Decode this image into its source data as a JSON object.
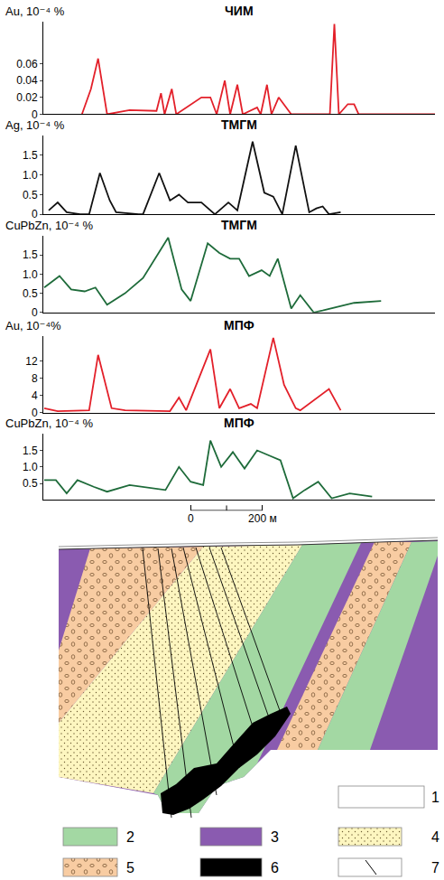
{
  "chart_data": [
    {
      "type": "line",
      "title": "ЧИМ",
      "y_label": "Au, 10⁻⁴ %",
      "color": "#e3202a",
      "x": [
        -302.5,
        -277.5,
        -257.5,
        -232.5,
        -170,
        -95,
        -82.5,
        -72.5,
        -52.5,
        -40,
        30,
        55,
        72.5,
        95,
        110,
        130,
        145,
        185,
        195,
        212.5,
        225,
        245,
        280,
        387.5,
        400,
        412.5,
        437.5,
        455,
        467.5,
        680
      ],
      "values": [
        0,
        0.03,
        0.066,
        0,
        0.005,
        0.004,
        0.025,
        0,
        0.03,
        0,
        0.02,
        0.02,
        0,
        0.04,
        0,
        0.035,
        0,
        0.008,
        0,
        0.035,
        0,
        0.02,
        0,
        0,
        0.107,
        0,
        0.012,
        0.012,
        0,
        0
      ],
      "xlim": [
        -410,
        680
      ],
      "ylim": [
        0,
        0.11
      ],
      "yticks": [
        0,
        0.02,
        0.04,
        0.06
      ],
      "grid": false,
      "tick_labels": "y"
    },
    {
      "type": "line",
      "title": "ТМГМ",
      "y_label": "Ag, 10⁻⁴ %",
      "color": "#111111",
      "x": [
        -395,
        -370,
        -345,
        -307.5,
        -282.5,
        -252.5,
        -225,
        -207.5,
        -145,
        -132.5,
        -87.5,
        -57.5,
        -32.5,
        -7.5,
        30,
        67.5,
        105,
        130,
        172.5,
        205,
        230,
        255,
        292.5,
        330,
        350,
        367.5,
        385,
        417.5
      ],
      "values": [
        0.1,
        0.3,
        0.05,
        0,
        0,
        1.05,
        0.35,
        0.05,
        0,
        0,
        1.05,
        0.35,
        0.5,
        0.3,
        0.3,
        0,
        0.3,
        0.1,
        1.85,
        0.55,
        0.45,
        0,
        1.75,
        0.05,
        0.15,
        0.2,
        0,
        0.05
      ],
      "xlim": [
        -410,
        680
      ],
      "ylim": [
        0,
        2
      ],
      "yticks": [
        0,
        0.5,
        {
          "value": 1,
          "label": "1.0"
        },
        1.5
      ],
      "grid": false,
      "tick_labels": "y"
    },
    {
      "type": "line",
      "title": "ТМГМ",
      "y_label": "CuPbZn, 10⁻⁴ %",
      "color": "#1e6b3a",
      "x": [
        -407.5,
        -365,
        -332.5,
        -295,
        -265,
        -232.5,
        -182.5,
        -132.5,
        -62.5,
        -25,
        0,
        47.5,
        80,
        110,
        135,
        162.5,
        197.5,
        220,
        242.5,
        280,
        305,
        342.5,
        367.5,
        455,
        530
      ],
      "values": [
        0.65,
        0.95,
        0.6,
        0.55,
        0.65,
        0.2,
        0.5,
        0.9,
        1.95,
        0.6,
        0.3,
        1.8,
        1.55,
        1.4,
        1.4,
        0.95,
        1.1,
        0.95,
        1.4,
        0.1,
        0.45,
        0,
        0.05,
        0.25,
        0.3
      ],
      "xlim": [
        -410,
        680
      ],
      "ylim": [
        0,
        2
      ],
      "yticks": [
        0,
        0.5,
        {
          "value": 1,
          "label": "1.0"
        },
        1.5
      ],
      "grid": false,
      "tick_labels": "y"
    },
    {
      "type": "line",
      "title": "МПФ",
      "y_label": "Au, 10⁻⁴%",
      "color": "#e3202a",
      "x": [
        -407.5,
        -370,
        -282.5,
        -257.5,
        -220,
        -182.5,
        -57.5,
        -32.5,
        -12.5,
        55,
        80,
        110,
        135,
        167.5,
        185,
        230,
        260,
        292.5,
        305,
        385,
        417.5
      ],
      "values": [
        1,
        0.3,
        0.5,
        13.5,
        1,
        0.5,
        0.3,
        3.5,
        0.5,
        14.8,
        1,
        5.5,
        1,
        2,
        1,
        17.5,
        6.5,
        1,
        0.5,
        5.5,
        0.5
      ],
      "xlim": [
        -410,
        680
      ],
      "ylim": [
        0,
        18
      ],
      "yticks": [
        0,
        4,
        8,
        12
      ],
      "grid": false,
      "tick_labels": "y"
    },
    {
      "type": "line",
      "title": "МПФ",
      "y_label": "CuPbZn, 10⁻⁴ %",
      "color": "#1e6b3a",
      "x": [
        -407.5,
        -375,
        -345,
        -315,
        -270,
        -232.5,
        -170,
        -107.5,
        -70,
        -32.5,
        0,
        35,
        55,
        85,
        117.5,
        150,
        185,
        217.5,
        250,
        285,
        317.5,
        355,
        392.5,
        442.5,
        505
      ],
      "values": [
        0.6,
        0.6,
        0.2,
        0.6,
        0.4,
        0.25,
        0.45,
        0.35,
        0.3,
        1.0,
        0.55,
        0.45,
        1.8,
        1.0,
        1.45,
        0.95,
        1.5,
        1.35,
        1.2,
        0.05,
        0.3,
        0.55,
        0.05,
        0.2,
        0.1
      ],
      "xlim": [
        -410,
        680
      ],
      "ylim": [
        0,
        2
      ],
      "yticks": [
        0.5,
        {
          "value": 1,
          "label": "1.0"
        },
        1.5
      ],
      "grid": false,
      "tick_labels": "y"
    }
  ],
  "scale_bar": {
    "xlim": [
      -410,
      680
    ],
    "xticks": [
      0,
      {
        "value": 200,
        "label": "200 м"
      }
    ]
  },
  "section": {
    "legend": [
      {
        "label": "1",
        "color": "#ffffff"
      },
      {
        "label": "2",
        "color": "#a3d8a3"
      },
      {
        "label": "3",
        "color": "#8a5bb0"
      },
      {
        "label": "4",
        "color": "#fdf6c0"
      },
      {
        "label": "5",
        "color": "#f8cca2"
      },
      {
        "label": "6",
        "color": "#000000"
      },
      {
        "label": "7",
        "color": "#ffffff"
      }
    ]
  }
}
